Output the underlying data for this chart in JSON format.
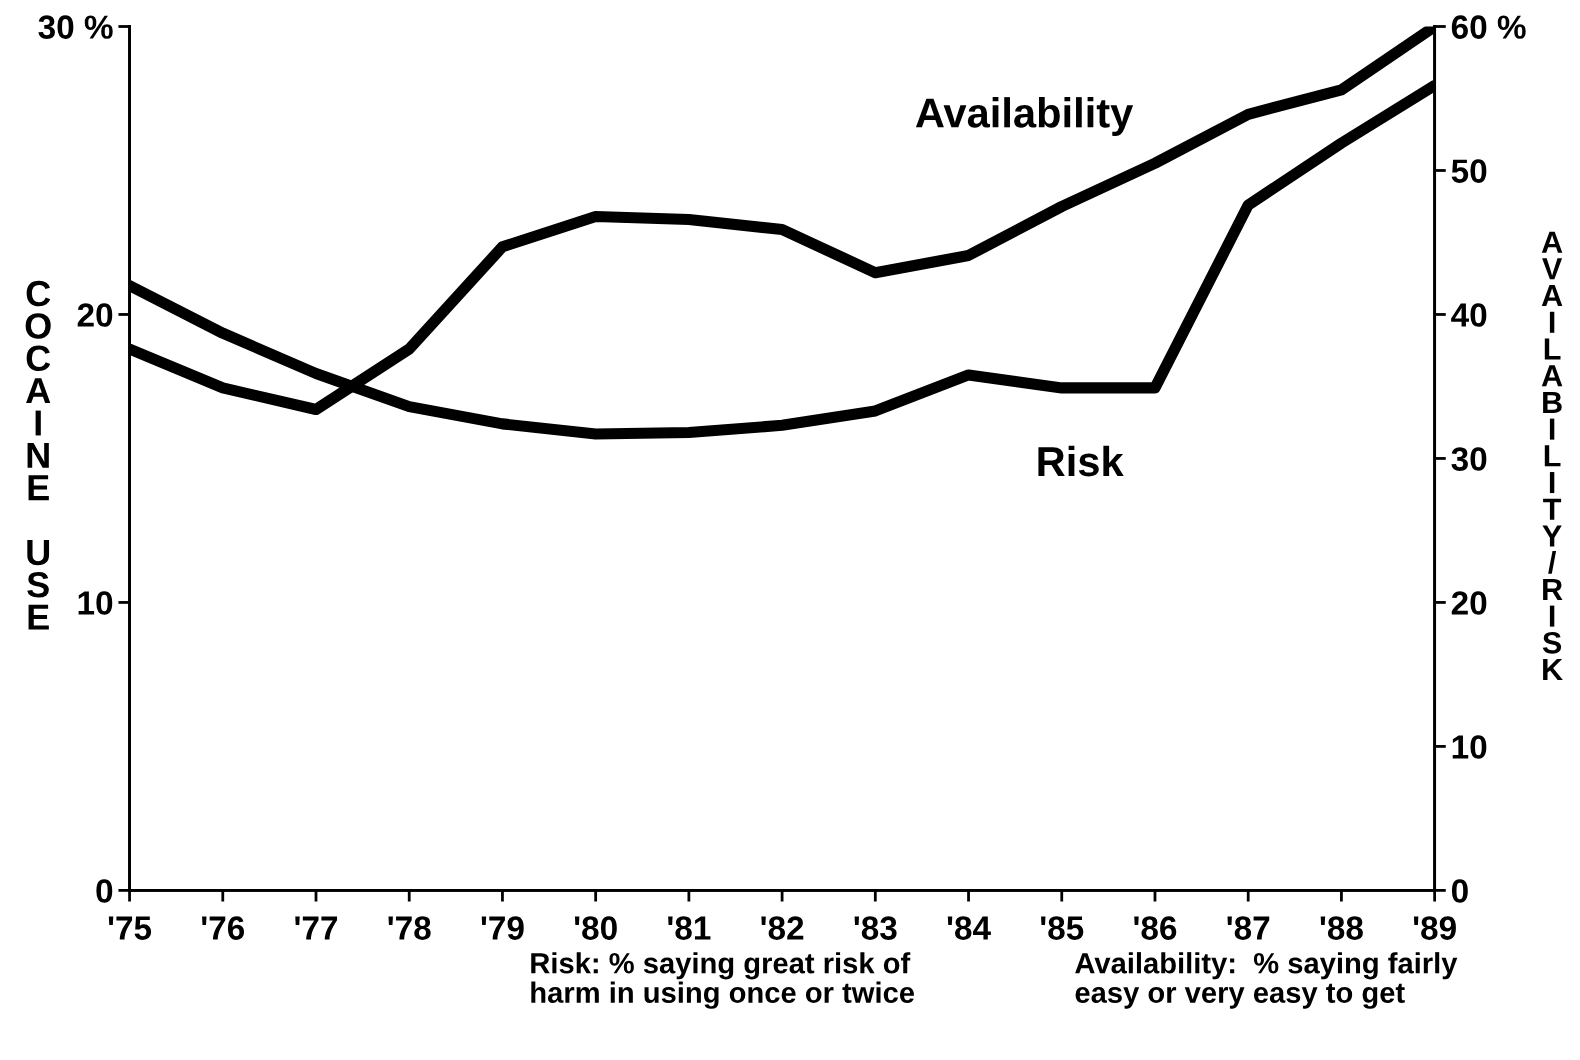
{
  "chart_data": {
    "type": "line",
    "ylabel": "COCAINE USE",
    "y2label": "AVAILABILITY/RISK",
    "categories": [
      "'75",
      "'76",
      "'77",
      "'78",
      "'79",
      "'80",
      "'81",
      "'82",
      "'83",
      "'84",
      "'85",
      "'86",
      "'87",
      "'88",
      "'89"
    ],
    "series": [
      {
        "name": "Availability",
        "color": "#000000",
        "axis": "y2",
        "values": [
          37.6,
          34.9,
          33.4,
          37.6,
          44.7,
          46.8,
          46.6,
          45.9,
          42.9,
          44.1,
          47.5,
          50.5,
          53.9,
          55.6,
          60
        ]
      },
      {
        "name": "Risk",
        "color": "#000000",
        "axis": "y2",
        "values": [
          42.0,
          38.7,
          35.9,
          33.6,
          32.4,
          31.7,
          31.8,
          32.3,
          33.3,
          35.8,
          34.9,
          34.9,
          47.6,
          51.9,
          55.9
        ]
      }
    ],
    "ylim": [
      0,
      30
    ],
    "yticks": [
      0,
      10,
      20,
      {
        "value": 30,
        "label": "30 %"
      }
    ],
    "y2lim": [
      0,
      60
    ],
    "y2ticks": [
      0,
      10,
      20,
      30,
      40,
      50,
      {
        "value": 60,
        "label": "60 %"
      }
    ],
    "grid": false,
    "legend": false,
    "marker": "none",
    "line_style": "solid",
    "annotations": [
      "Risk: % saying great risk of\nharm in using once or twice",
      "Availability:  % saying fairly\neasy or very easy to get"
    ]
  }
}
